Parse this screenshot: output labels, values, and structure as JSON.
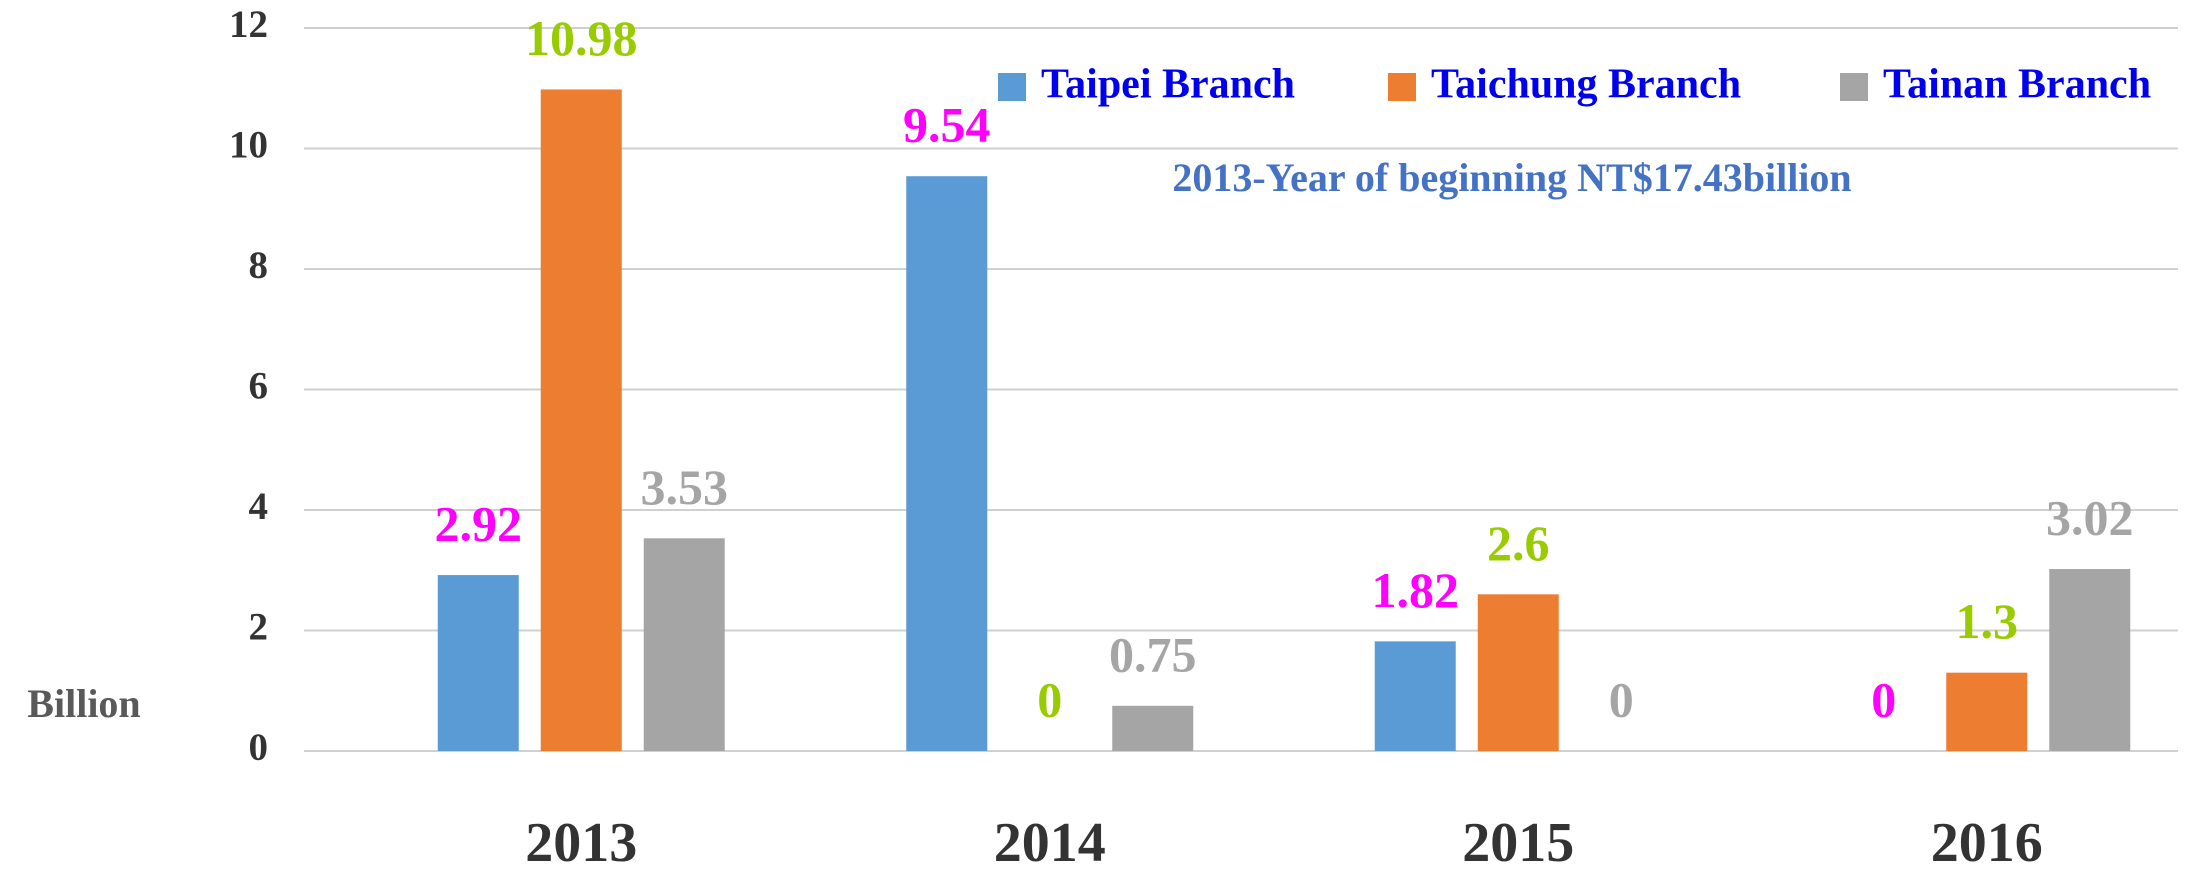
{
  "chart_data": {
    "type": "bar",
    "annotation": "2013-Year of beginning NT$17.43billion",
    "y_label": "Billion",
    "categories": [
      "2013",
      "2014",
      "2015",
      "2016"
    ],
    "series": [
      {
        "name": "Taipei Branch",
        "color": "#5b9bd5",
        "label_color": "#ff00ff",
        "values": [
          2.92,
          9.54,
          1.82,
          0
        ]
      },
      {
        "name": "Taichung Branch",
        "color": "#ed7d31",
        "label_color": "#99cc00",
        "values": [
          10.98,
          0,
          2.6,
          1.3
        ]
      },
      {
        "name": "Tainan Branch",
        "color": "#a5a5a5",
        "label_color": "#a5a5a5",
        "values": [
          3.53,
          0.75,
          0,
          3.02
        ]
      }
    ],
    "ylim": [
      0,
      12
    ],
    "yticks": [
      0,
      2,
      4,
      6,
      8,
      10,
      12
    ],
    "grid": true,
    "legend": "top-right"
  }
}
